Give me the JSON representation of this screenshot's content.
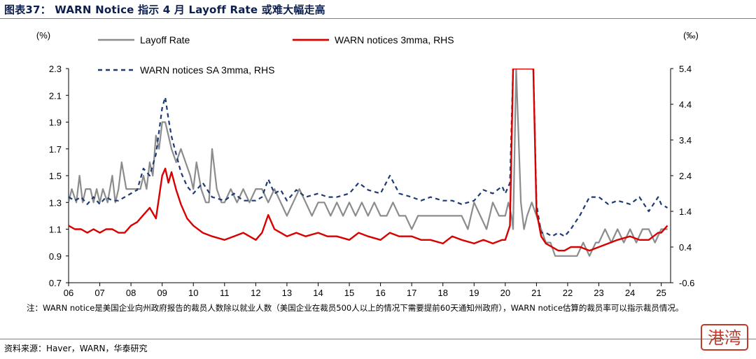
{
  "header": {
    "title": "图表37： WARN Notice 指示 4 月 Layoff Rate 或难大幅走高"
  },
  "footer": {
    "note": "注：WARN notice是美国企业向州政府报告的裁员人数除以就业人数（美国企业在裁员500人以上的情况下需要提前60天通知州政府），WARN notice估算的裁员率可以指示裁员情况。",
    "source": "资料来源：Haver，WARN，华泰研究"
  },
  "watermark": {
    "text": "港湾",
    "color": "#c0392b"
  },
  "colors": {
    "layoff": "#8c8c8c",
    "warn": "#d90000",
    "warn_sa": "#1f3b73",
    "axis": "#000000"
  },
  "chart_data": {
    "type": "line",
    "x_ticks": [
      "06",
      "07",
      "08",
      "09",
      "10",
      "11",
      "12",
      "13",
      "14",
      "15",
      "16",
      "17",
      "18",
      "19",
      "20",
      "21",
      "22",
      "23",
      "24",
      "25"
    ],
    "y_left": {
      "label": "(%)",
      "ticks": [
        "0.7",
        "0.9",
        "1.1",
        "1.3",
        "1.5",
        "1.7",
        "1.9",
        "2.1",
        "2.3"
      ],
      "min": 0.7,
      "max": 2.3
    },
    "y_right": {
      "label": "(‰)",
      "ticks": [
        "-0.6",
        "0.4",
        "1.4",
        "2.4",
        "3.4",
        "4.4",
        "5.4"
      ],
      "min": -0.6,
      "max": 5.4
    },
    "legend": {
      "placement": "top-left"
    },
    "series": [
      {
        "name": "Layoff Rate",
        "axis": "left",
        "style": "solid",
        "x": [
          2006.0,
          2006.1,
          2006.25,
          2006.35,
          2006.45,
          2006.55,
          2006.7,
          2006.8,
          2006.9,
          2007.0,
          2007.1,
          2007.25,
          2007.4,
          2007.5,
          2007.6,
          2007.7,
          2007.85,
          2008.0,
          2008.2,
          2008.3,
          2008.4,
          2008.5,
          2008.6,
          2008.7,
          2008.8,
          2008.9,
          2009.0,
          2009.1,
          2009.2,
          2009.3,
          2009.45,
          2009.6,
          2009.75,
          2009.9,
          2010.0,
          2010.1,
          2010.25,
          2010.4,
          2010.5,
          2010.6,
          2010.75,
          2010.9,
          2011.0,
          2011.2,
          2011.4,
          2011.6,
          2011.8,
          2012.0,
          2012.2,
          2012.4,
          2012.6,
          2012.8,
          2013.0,
          2013.2,
          2013.4,
          2013.6,
          2013.8,
          2014.0,
          2014.2,
          2014.4,
          2014.6,
          2014.8,
          2015.0,
          2015.2,
          2015.4,
          2015.6,
          2015.8,
          2016.0,
          2016.2,
          2016.4,
          2016.6,
          2016.8,
          2017.0,
          2017.2,
          2017.4,
          2017.6,
          2017.8,
          2018.0,
          2018.2,
          2018.4,
          2018.6,
          2018.8,
          2019.0,
          2019.2,
          2019.4,
          2019.6,
          2019.8,
          2020.0,
          2020.1,
          2020.2,
          2020.25,
          2020.35,
          2020.5,
          2020.6,
          2020.7,
          2020.85,
          2021.0,
          2021.15,
          2021.3,
          2021.45,
          2021.6,
          2021.75,
          2021.9,
          2022.1,
          2022.3,
          2022.5,
          2022.7,
          2022.9,
          2023.0,
          2023.2,
          2023.4,
          2023.6,
          2023.8,
          2024.0,
          2024.2,
          2024.4,
          2024.6,
          2024.8,
          2025.0,
          2025.2
        ],
        "y": [
          1.3,
          1.4,
          1.3,
          1.5,
          1.3,
          1.4,
          1.4,
          1.3,
          1.4,
          1.3,
          1.4,
          1.3,
          1.5,
          1.3,
          1.4,
          1.6,
          1.4,
          1.4,
          1.4,
          1.4,
          1.5,
          1.4,
          1.6,
          1.5,
          1.8,
          1.7,
          1.9,
          1.9,
          1.8,
          1.7,
          1.6,
          1.7,
          1.6,
          1.5,
          1.4,
          1.6,
          1.4,
          1.3,
          1.3,
          1.7,
          1.4,
          1.3,
          1.3,
          1.4,
          1.3,
          1.4,
          1.3,
          1.4,
          1.4,
          1.3,
          1.4,
          1.3,
          1.2,
          1.3,
          1.4,
          1.3,
          1.2,
          1.3,
          1.3,
          1.2,
          1.3,
          1.2,
          1.3,
          1.2,
          1.3,
          1.2,
          1.3,
          1.2,
          1.2,
          1.3,
          1.2,
          1.2,
          1.1,
          1.2,
          1.2,
          1.2,
          1.2,
          1.2,
          1.2,
          1.2,
          1.2,
          1.1,
          1.3,
          1.2,
          1.1,
          1.3,
          1.2,
          1.2,
          1.3,
          1.2,
          1.1,
          2.3,
          1.3,
          1.1,
          1.2,
          1.3,
          1.2,
          1.1,
          1.0,
          1.0,
          0.9,
          0.9,
          0.9,
          0.9,
          0.9,
          1.0,
          0.9,
          1.0,
          1.0,
          1.1,
          1.0,
          1.1,
          1.0,
          1.1,
          1.0,
          1.1,
          1.1,
          1.0,
          1.1,
          1.1
        ]
      },
      {
        "name": "WARN notices 3mma, RHS",
        "axis": "right",
        "style": "solid",
        "x": [
          2006.0,
          2006.2,
          2006.4,
          2006.6,
          2006.8,
          2007.0,
          2007.2,
          2007.4,
          2007.6,
          2007.8,
          2008.0,
          2008.2,
          2008.4,
          2008.6,
          2008.8,
          2009.0,
          2009.1,
          2009.2,
          2009.3,
          2009.45,
          2009.6,
          2009.8,
          2010.0,
          2010.3,
          2010.6,
          2011.0,
          2011.3,
          2011.6,
          2012.0,
          2012.2,
          2012.4,
          2012.6,
          2012.8,
          2013.0,
          2013.3,
          2013.6,
          2014.0,
          2014.3,
          2014.6,
          2015.0,
          2015.3,
          2015.6,
          2016.0,
          2016.3,
          2016.6,
          2017.0,
          2017.3,
          2017.6,
          2018.0,
          2018.3,
          2018.6,
          2019.0,
          2019.3,
          2019.6,
          2019.9,
          2020.0,
          2020.15,
          2020.25,
          2020.35,
          2020.5,
          2020.6,
          2020.75,
          2020.9,
          2021.0,
          2021.15,
          2021.3,
          2021.5,
          2021.7,
          2021.9,
          2022.1,
          2022.4,
          2022.7,
          2023.0,
          2023.3,
          2023.6,
          2024.0,
          2024.3,
          2024.6,
          2024.9,
          2025.0,
          2025.2
        ],
        "y": [
          1.0,
          0.9,
          0.9,
          0.8,
          0.9,
          0.8,
          0.9,
          0.9,
          0.8,
          0.8,
          1.0,
          1.1,
          1.3,
          1.5,
          1.2,
          2.4,
          2.6,
          2.2,
          2.5,
          2.0,
          1.6,
          1.2,
          1.0,
          0.8,
          0.7,
          0.6,
          0.7,
          0.8,
          0.6,
          0.8,
          1.3,
          0.9,
          0.8,
          0.7,
          0.8,
          0.7,
          0.8,
          0.7,
          0.7,
          0.6,
          0.8,
          0.7,
          0.6,
          0.8,
          0.7,
          0.7,
          0.6,
          0.6,
          0.5,
          0.7,
          0.6,
          0.5,
          0.6,
          0.5,
          0.6,
          0.6,
          1.0,
          5.4,
          5.4,
          5.4,
          5.4,
          5.4,
          5.4,
          1.4,
          0.7,
          0.5,
          0.4,
          0.3,
          0.3,
          0.4,
          0.4,
          0.3,
          0.4,
          0.5,
          0.6,
          0.7,
          0.6,
          0.6,
          0.8,
          0.8,
          1.0
        ]
      },
      {
        "name": "WARN notices SA 3mma, RHS",
        "axis": "right",
        "style": "dashed",
        "x": [
          2006.0,
          2006.2,
          2006.4,
          2006.6,
          2006.8,
          2007.0,
          2007.2,
          2007.4,
          2007.6,
          2007.8,
          2008.0,
          2008.2,
          2008.4,
          2008.6,
          2008.8,
          2009.0,
          2009.1,
          2009.2,
          2009.3,
          2009.45,
          2009.6,
          2009.8,
          2010.0,
          2010.3,
          2010.6,
          2011.0,
          2011.3,
          2011.6,
          2012.0,
          2012.2,
          2012.4,
          2012.6,
          2012.8,
          2013.0,
          2013.3,
          2013.6,
          2014.0,
          2014.3,
          2014.6,
          2015.0,
          2015.3,
          2015.6,
          2016.0,
          2016.3,
          2016.6,
          2017.0,
          2017.3,
          2017.6,
          2018.0,
          2018.3,
          2018.6,
          2019.0,
          2019.3,
          2019.6,
          2019.9,
          2020.0,
          2020.15,
          2020.25,
          2020.35,
          2020.5,
          2020.6,
          2020.75,
          2020.9,
          2021.0,
          2021.15,
          2021.3,
          2021.5,
          2021.7,
          2021.9,
          2022.1,
          2022.4,
          2022.7,
          2023.0,
          2023.3,
          2023.6,
          2024.0,
          2024.3,
          2024.6,
          2024.9,
          2025.0,
          2025.2
        ],
        "y": [
          1.8,
          1.7,
          1.8,
          1.6,
          1.8,
          1.6,
          1.8,
          1.7,
          1.7,
          1.8,
          1.9,
          2.0,
          2.6,
          2.4,
          3.0,
          4.3,
          4.6,
          4.0,
          3.5,
          3.0,
          2.5,
          2.1,
          1.9,
          2.2,
          1.8,
          1.7,
          1.9,
          1.7,
          1.7,
          1.8,
          2.3,
          1.9,
          2.0,
          1.7,
          2.0,
          1.8,
          1.9,
          1.8,
          1.8,
          1.9,
          2.2,
          2.0,
          1.9,
          2.4,
          1.9,
          1.8,
          1.7,
          1.8,
          1.7,
          1.7,
          1.6,
          1.7,
          2.0,
          1.9,
          2.1,
          1.9,
          2.2,
          5.4,
          5.4,
          5.4,
          5.4,
          5.4,
          5.4,
          1.6,
          0.8,
          0.8,
          0.7,
          0.8,
          0.7,
          0.9,
          1.3,
          1.8,
          1.8,
          1.6,
          1.7,
          1.6,
          1.8,
          1.4,
          1.8,
          1.6,
          1.5
        ]
      }
    ]
  }
}
